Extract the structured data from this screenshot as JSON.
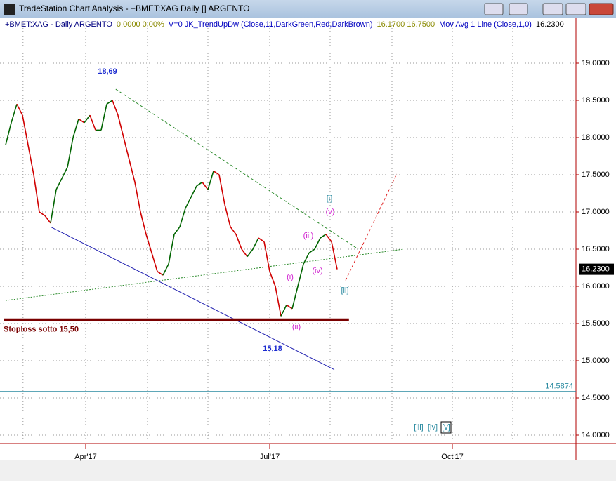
{
  "window_title": "TradeStation Chart Analysis - +BMET:XAG Daily [] ARGENTO",
  "chart_data": {
    "type": "price",
    "header": [
      {
        "text": "+BMET:XAG - Daily  ARGENTO",
        "color": "#000080"
      },
      {
        "text": "0.0000  0.00%",
        "color": "#8a8a00"
      },
      {
        "text": "V=0  JK_TrendUpDw (Close,11,DarkGreen,Red,DarkBrown)",
        "color": "#0000c0"
      },
      {
        "text": "16.1700  16.7500",
        "color": "#8a8a00"
      },
      {
        "text": "Mov Avg 1 Line (Close,1,0)",
        "color": "#0000c0"
      },
      {
        "text": "16.2300",
        "color": "#000000"
      }
    ],
    "up_color": "#006400",
    "down_color": "#d00000",
    "values": [
      17.9,
      18.2,
      18.45,
      18.3,
      17.9,
      17.5,
      17.0,
      16.95,
      16.85,
      17.3,
      17.45,
      17.6,
      18.0,
      18.25,
      18.2,
      18.3,
      18.1,
      18.1,
      18.45,
      18.5,
      18.3,
      18.0,
      17.7,
      17.4,
      17.0,
      16.7,
      16.45,
      16.2,
      16.15,
      16.3,
      16.7,
      16.8,
      17.05,
      17.2,
      17.35,
      17.4,
      17.3,
      17.55,
      17.5,
      17.1,
      16.8,
      16.7,
      16.5,
      16.4,
      16.5,
      16.65,
      16.6,
      16.2,
      16.0,
      15.6,
      15.75,
      15.7,
      16.0,
      16.3,
      16.45,
      16.5,
      16.65,
      16.7,
      16.6,
      16.23
    ],
    "xlim": [
      0,
      102
    ],
    "xticks": [
      {
        "value": 14.25,
        "label": "Apr'17"
      },
      {
        "value": 47,
        "label": "Jul'17"
      },
      {
        "value": 79.5,
        "label": "Oct'17"
      }
    ],
    "xgrid": [
      3.1,
      14.25,
      25.25,
      36,
      47,
      57.75,
      68.75,
      79.5,
      90.25
    ],
    "ylim": [
      13.76,
      19.58
    ],
    "yticks": [
      {
        "value": 14,
        "label": "14.0000"
      },
      {
        "value": 14.5,
        "label": "14.5000"
      },
      {
        "value": 15,
        "label": "15.0000"
      },
      {
        "value": 15.5,
        "label": "15.5000"
      },
      {
        "value": 16,
        "label": "16.0000"
      },
      {
        "value": 16.5,
        "label": "16.5000"
      },
      {
        "value": 17,
        "label": "17.0000"
      },
      {
        "value": 17.5,
        "label": "17.5000"
      },
      {
        "value": 18,
        "label": "18.0000"
      },
      {
        "value": 18.5,
        "label": "18.5000"
      },
      {
        "value": 19,
        "label": "19.0000"
      }
    ],
    "grid": true,
    "last_price": {
      "value": 16.23,
      "label": "16.2300"
    },
    "level_line": {
      "value": 14.5874,
      "label": "14.5874",
      "color": "#2a8aa0"
    },
    "stoploss": {
      "value": 15.55,
      "label": "Stoploss sotto 15,50",
      "x_end": 61.1,
      "color": "#7a0000"
    },
    "trendlines": [
      {
        "x": [
          19.6,
          62.75
        ],
        "y": [
          18.65,
          16.5
        ],
        "color": "#2a8a2a",
        "dash": "4,3"
      },
      {
        "x": [
          8,
          58.5
        ],
        "y": [
          16.8,
          14.88
        ],
        "color": "#2020b0",
        "dash": ""
      },
      {
        "x": [
          0,
          70.9
        ],
        "y": [
          15.81,
          16.5
        ],
        "color": "#2a8a2a",
        "dash": "2,2"
      },
      {
        "x": [
          60.5,
          69.6
        ],
        "y": [
          16.08,
          17.51
        ],
        "color": "#e02020",
        "dash": "4,3"
      }
    ],
    "annotations": [
      {
        "text": "18,69",
        "color": "#1a2ad0"
      },
      {
        "text": "15,18",
        "color": "#1a2ad0"
      },
      {
        "text": "(i)",
        "color": "#d020d0"
      },
      {
        "text": "(ii)",
        "color": "#d020d0"
      },
      {
        "text": "(iii)",
        "color": "#d020d0"
      },
      {
        "text": "(iv)",
        "color": "#d020d0"
      },
      {
        "text": "(v)",
        "color": "#d020d0"
      },
      {
        "text": "[i]",
        "color": "#2a8aa0"
      },
      {
        "text": "[ii]",
        "color": "#2a8aa0"
      },
      {
        "text": "[iii]",
        "color": "#2a8aa0"
      },
      {
        "text": "[iv]",
        "color": "#2a8aa0"
      },
      {
        "text": "[v]",
        "color": "#2a8aa0"
      }
    ]
  }
}
